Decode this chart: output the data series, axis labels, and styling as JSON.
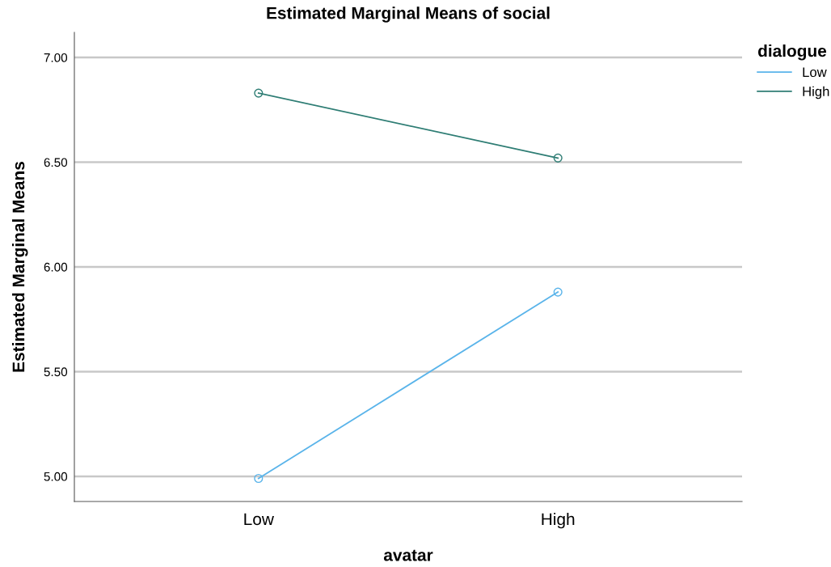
{
  "chart_data": {
    "type": "line",
    "title": "Estimated Marginal Means of social",
    "xlabel": "avatar",
    "ylabel": "Estimated Marginal Means",
    "legend_title": "dialogue",
    "categories": [
      "Low",
      "High"
    ],
    "series": [
      {
        "name": "Low",
        "color": "#5ab4ea",
        "values": [
          4.99,
          5.88
        ]
      },
      {
        "name": "High",
        "color": "#2e7d74",
        "values": [
          6.83,
          6.52
        ]
      }
    ],
    "ylim": [
      4.88,
      7.12
    ],
    "yticks": [
      {
        "value": 5,
        "label": "5.00"
      },
      {
        "value": 5.5,
        "label": "5.50"
      },
      {
        "value": 6,
        "label": "6.00"
      },
      {
        "value": 6.5,
        "label": "6.50"
      },
      {
        "value": 7,
        "label": "7.00"
      }
    ],
    "grid": "y",
    "legend": "top right",
    "marker": "circle",
    "line_style": "solid"
  }
}
